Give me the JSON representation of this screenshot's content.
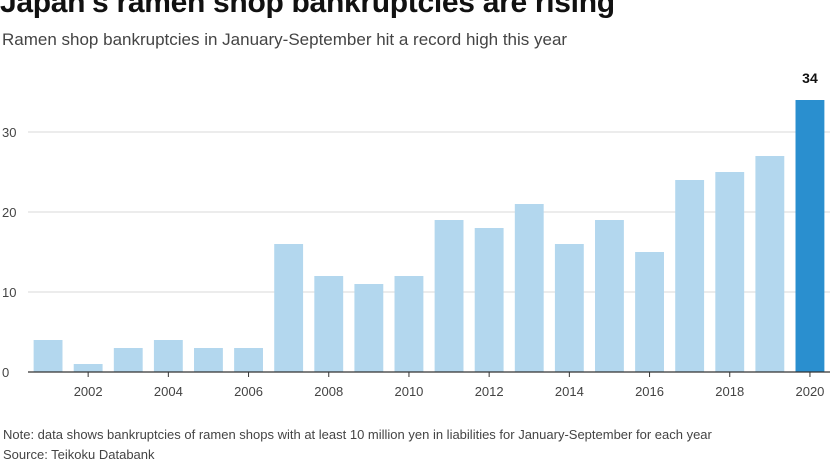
{
  "header": {
    "title": "Japan's ramen shop bankruptcies are rising",
    "subtitle": "Ramen shop bankruptcies in January-September hit a record high this year"
  },
  "footer": {
    "note": "Note: data shows bankruptcies of ramen shops with at least 10 million yen in liabilities for January-September for each year",
    "source": "Source: Teikoku Databank"
  },
  "chart_data": {
    "type": "bar",
    "title": "Japan's ramen shop bankruptcies are rising",
    "subtitle": "Ramen shop bankruptcies in January-September hit a record high this year",
    "categories": [
      "2001",
      "2002",
      "2003",
      "2004",
      "2005",
      "2006",
      "2007",
      "2008",
      "2009",
      "2010",
      "2011",
      "2012",
      "2013",
      "2014",
      "2015",
      "2016",
      "2017",
      "2018",
      "2019",
      "2020"
    ],
    "values": [
      4,
      1,
      3,
      4,
      3,
      3,
      16,
      12,
      11,
      12,
      19,
      18,
      21,
      16,
      19,
      15,
      24,
      25,
      27,
      34
    ],
    "x_tick_labels": [
      "2002",
      "2004",
      "2006",
      "2008",
      "2010",
      "2012",
      "2014",
      "2016",
      "2018",
      "2020"
    ],
    "y_ticks": [
      0,
      10,
      20,
      30
    ],
    "ylim": [
      0,
      35
    ],
    "grid": true,
    "highlight_label": "34",
    "colors": {
      "bar": "#b3d7ee",
      "highlight": "#2a8fcf",
      "grid": "#d9d9d9",
      "axis": "#333333"
    },
    "xlabel": "",
    "ylabel": ""
  }
}
